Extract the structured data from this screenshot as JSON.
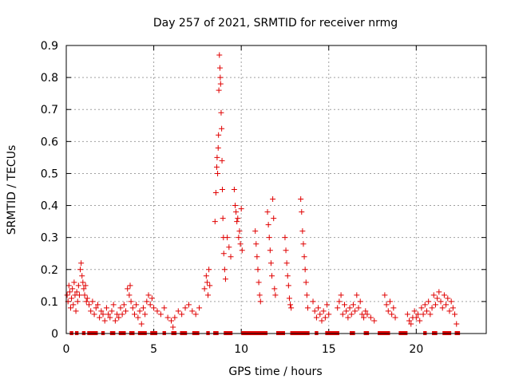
{
  "chart_data": {
    "type": "scatter",
    "title": "Day 257 of 2021, SRMTID for receiver nrmg",
    "xlabel": "GPS time / hours",
    "ylabel": "SRMTID / TECUs",
    "xlim": [
      0,
      24
    ],
    "ylim": [
      0,
      0.9
    ],
    "xticks": [
      0,
      5,
      10,
      15,
      20
    ],
    "yticks": [
      0,
      0.1,
      0.2,
      0.3,
      0.4,
      0.5,
      0.6,
      0.7,
      0.8,
      0.9
    ],
    "xtick_labels": [
      "0",
      "5",
      "10",
      "15",
      "20"
    ],
    "ytick_labels": [
      "0",
      "0.1",
      "0.2",
      "0.3",
      "0.4",
      "0.5",
      "0.6",
      "0.7",
      "0.8",
      "0.9"
    ],
    "grid": true,
    "marker": "+",
    "color": "#e00000",
    "series": [
      {
        "name": "SRMTID",
        "points": [
          [
            0.05,
            0.12
          ],
          [
            0.1,
            0.1
          ],
          [
            0.15,
            0.15
          ],
          [
            0.2,
            0.13
          ],
          [
            0.25,
            0.08
          ],
          [
            0.3,
            0.11
          ],
          [
            0.35,
            0.14
          ],
          [
            0.4,
            0.09
          ],
          [
            0.45,
            0.16
          ],
          [
            0.5,
            0.12
          ],
          [
            0.55,
            0.07
          ],
          [
            0.6,
            0.13
          ],
          [
            0.65,
            0.1
          ],
          [
            0.7,
            0.15
          ],
          [
            0.75,
            0.12
          ],
          [
            0.8,
            0.2
          ],
          [
            0.85,
            0.22
          ],
          [
            0.9,
            0.18
          ],
          [
            0.95,
            0.16
          ],
          [
            1.0,
            0.14
          ],
          [
            1.05,
            0.12
          ],
          [
            1.1,
            0.15
          ],
          [
            1.15,
            0.1
          ],
          [
            1.2,
            0.11
          ],
          [
            1.3,
            0.09
          ],
          [
            1.4,
            0.07
          ],
          [
            1.5,
            0.1
          ],
          [
            1.6,
            0.06
          ],
          [
            1.7,
            0.08
          ],
          [
            1.8,
            0.09
          ],
          [
            1.9,
            0.05
          ],
          [
            2.0,
            0.07
          ],
          [
            2.1,
            0.06
          ],
          [
            2.2,
            0.04
          ],
          [
            2.3,
            0.08
          ],
          [
            2.4,
            0.06
          ],
          [
            2.5,
            0.05
          ],
          [
            2.6,
            0.07
          ],
          [
            2.7,
            0.09
          ],
          [
            2.8,
            0.04
          ],
          [
            2.9,
            0.06
          ],
          [
            3.0,
            0.05
          ],
          [
            3.1,
            0.08
          ],
          [
            3.2,
            0.06
          ],
          [
            3.3,
            0.09
          ],
          [
            3.4,
            0.07
          ],
          [
            3.5,
            0.14
          ],
          [
            3.6,
            0.12
          ],
          [
            3.65,
            0.15
          ],
          [
            3.7,
            0.1
          ],
          [
            3.8,
            0.08
          ],
          [
            3.9,
            0.06
          ],
          [
            4.0,
            0.09
          ],
          [
            4.1,
            0.05
          ],
          [
            4.2,
            0.07
          ],
          [
            4.3,
            0.03
          ],
          [
            4.4,
            0.08
          ],
          [
            4.5,
            0.06
          ],
          [
            4.6,
            0.1
          ],
          [
            4.7,
            0.12
          ],
          [
            4.8,
            0.09
          ],
          [
            4.9,
            0.11
          ],
          [
            5.0,
            0.08
          ],
          [
            5.2,
            0.07
          ],
          [
            5.4,
            0.06
          ],
          [
            5.6,
            0.08
          ],
          [
            5.8,
            0.05
          ],
          [
            6.0,
            0.04
          ],
          [
            6.1,
            0.02
          ],
          [
            6.2,
            0.05
          ],
          [
            6.4,
            0.07
          ],
          [
            6.6,
            0.06
          ],
          [
            6.8,
            0.08
          ],
          [
            7.0,
            0.09
          ],
          [
            7.2,
            0.07
          ],
          [
            7.4,
            0.06
          ],
          [
            7.6,
            0.08
          ],
          [
            7.9,
            0.14
          ],
          [
            8.0,
            0.18
          ],
          [
            8.05,
            0.16
          ],
          [
            8.1,
            0.12
          ],
          [
            8.15,
            0.2
          ],
          [
            8.2,
            0.15
          ],
          [
            8.5,
            0.35
          ],
          [
            8.55,
            0.44
          ],
          [
            8.6,
            0.52
          ],
          [
            8.62,
            0.55
          ],
          [
            8.65,
            0.5
          ],
          [
            8.68,
            0.58
          ],
          [
            8.7,
            0.62
          ],
          [
            8.72,
            0.76
          ],
          [
            8.75,
            0.87
          ],
          [
            8.78,
            0.83
          ],
          [
            8.8,
            0.8
          ],
          [
            8.82,
            0.78
          ],
          [
            8.85,
            0.69
          ],
          [
            8.88,
            0.64
          ],
          [
            8.9,
            0.54
          ],
          [
            8.92,
            0.45
          ],
          [
            8.95,
            0.36
          ],
          [
            8.98,
            0.3
          ],
          [
            9.0,
            0.25
          ],
          [
            9.05,
            0.2
          ],
          [
            9.1,
            0.17
          ],
          [
            9.2,
            0.3
          ],
          [
            9.3,
            0.27
          ],
          [
            9.4,
            0.24
          ],
          [
            9.6,
            0.45
          ],
          [
            9.65,
            0.4
          ],
          [
            9.7,
            0.38
          ],
          [
            9.75,
            0.35
          ],
          [
            9.8,
            0.36
          ],
          [
            9.85,
            0.3
          ],
          [
            9.9,
            0.32
          ],
          [
            9.95,
            0.28
          ],
          [
            10.0,
            0.39
          ],
          [
            10.05,
            0.26
          ],
          [
            10.8,
            0.32
          ],
          [
            10.85,
            0.28
          ],
          [
            10.9,
            0.24
          ],
          [
            10.95,
            0.2
          ],
          [
            11.0,
            0.16
          ],
          [
            11.05,
            0.12
          ],
          [
            11.1,
            0.1
          ],
          [
            11.5,
            0.38
          ],
          [
            11.55,
            0.34
          ],
          [
            11.6,
            0.3
          ],
          [
            11.65,
            0.26
          ],
          [
            11.7,
            0.22
          ],
          [
            11.75,
            0.18
          ],
          [
            11.8,
            0.42
          ],
          [
            11.85,
            0.36
          ],
          [
            11.9,
            0.14
          ],
          [
            11.95,
            0.12
          ],
          [
            12.5,
            0.3
          ],
          [
            12.55,
            0.26
          ],
          [
            12.6,
            0.22
          ],
          [
            12.65,
            0.18
          ],
          [
            12.7,
            0.15
          ],
          [
            12.75,
            0.11
          ],
          [
            12.8,
            0.09
          ],
          [
            12.85,
            0.08
          ],
          [
            13.4,
            0.42
          ],
          [
            13.45,
            0.38
          ],
          [
            13.5,
            0.32
          ],
          [
            13.55,
            0.28
          ],
          [
            13.6,
            0.24
          ],
          [
            13.65,
            0.2
          ],
          [
            13.7,
            0.16
          ],
          [
            13.75,
            0.12
          ],
          [
            13.8,
            0.08
          ],
          [
            14.1,
            0.1
          ],
          [
            14.2,
            0.07
          ],
          [
            14.3,
            0.05
          ],
          [
            14.4,
            0.08
          ],
          [
            14.5,
            0.06
          ],
          [
            14.6,
            0.04
          ],
          [
            14.7,
            0.07
          ],
          [
            14.8,
            0.05
          ],
          [
            14.9,
            0.09
          ],
          [
            15.0,
            0.06
          ],
          [
            15.5,
            0.08
          ],
          [
            15.6,
            0.1
          ],
          [
            15.7,
            0.12
          ],
          [
            15.8,
            0.06
          ],
          [
            15.9,
            0.09
          ],
          [
            16.0,
            0.07
          ],
          [
            16.1,
            0.05
          ],
          [
            16.2,
            0.08
          ],
          [
            16.3,
            0.06
          ],
          [
            16.4,
            0.09
          ],
          [
            16.5,
            0.07
          ],
          [
            16.6,
            0.12
          ],
          [
            16.7,
            0.08
          ],
          [
            16.8,
            0.1
          ],
          [
            16.9,
            0.06
          ],
          [
            17.0,
            0.05
          ],
          [
            17.1,
            0.07
          ],
          [
            17.2,
            0.06
          ],
          [
            17.4,
            0.05
          ],
          [
            17.6,
            0.04
          ],
          [
            18.2,
            0.12
          ],
          [
            18.3,
            0.09
          ],
          [
            18.4,
            0.07
          ],
          [
            18.5,
            0.1
          ],
          [
            18.6,
            0.06
          ],
          [
            18.7,
            0.08
          ],
          [
            18.8,
            0.05
          ],
          [
            19.5,
            0.06
          ],
          [
            19.6,
            0.04
          ],
          [
            19.7,
            0.03
          ],
          [
            19.8,
            0.05
          ],
          [
            19.9,
            0.07
          ],
          [
            20.0,
            0.05
          ],
          [
            20.1,
            0.06
          ],
          [
            20.2,
            0.04
          ],
          [
            20.3,
            0.08
          ],
          [
            20.4,
            0.06
          ],
          [
            20.5,
            0.09
          ],
          [
            20.6,
            0.07
          ],
          [
            20.7,
            0.1
          ],
          [
            20.8,
            0.06
          ],
          [
            20.9,
            0.08
          ],
          [
            21.0,
            0.12
          ],
          [
            21.1,
            0.09
          ],
          [
            21.2,
            0.11
          ],
          [
            21.3,
            0.13
          ],
          [
            21.4,
            0.1
          ],
          [
            21.5,
            0.08
          ],
          [
            21.6,
            0.12
          ],
          [
            21.7,
            0.09
          ],
          [
            21.8,
            0.11
          ],
          [
            21.9,
            0.07
          ],
          [
            22.0,
            0.1
          ],
          [
            22.1,
            0.08
          ],
          [
            22.2,
            0.06
          ],
          [
            22.3,
            0.03
          ]
        ]
      }
    ],
    "zero_bars": [
      [
        0.2,
        0.4
      ],
      [
        0.5,
        0.7
      ],
      [
        0.9,
        1.1
      ],
      [
        1.2,
        1.8
      ],
      [
        2.0,
        2.2
      ],
      [
        2.5,
        2.8
      ],
      [
        3.0,
        3.4
      ],
      [
        3.6,
        3.9
      ],
      [
        4.1,
        4.6
      ],
      [
        4.8,
        5.2
      ],
      [
        5.5,
        5.7
      ],
      [
        6.0,
        6.3
      ],
      [
        6.5,
        6.9
      ],
      [
        7.2,
        7.6
      ],
      [
        8.0,
        8.2
      ],
      [
        8.4,
        8.7
      ],
      [
        9.0,
        9.5
      ],
      [
        10.0,
        11.5
      ],
      [
        12.0,
        12.5
      ],
      [
        12.8,
        13.9
      ],
      [
        14.2,
        14.4
      ],
      [
        14.8,
        15.6
      ],
      [
        16.2,
        16.5
      ],
      [
        17.0,
        17.3
      ],
      [
        17.8,
        18.5
      ],
      [
        19.0,
        19.5
      ],
      [
        20.4,
        20.6
      ],
      [
        20.9,
        21.2
      ],
      [
        21.5,
        22.0
      ],
      [
        22.2,
        22.5
      ]
    ]
  }
}
